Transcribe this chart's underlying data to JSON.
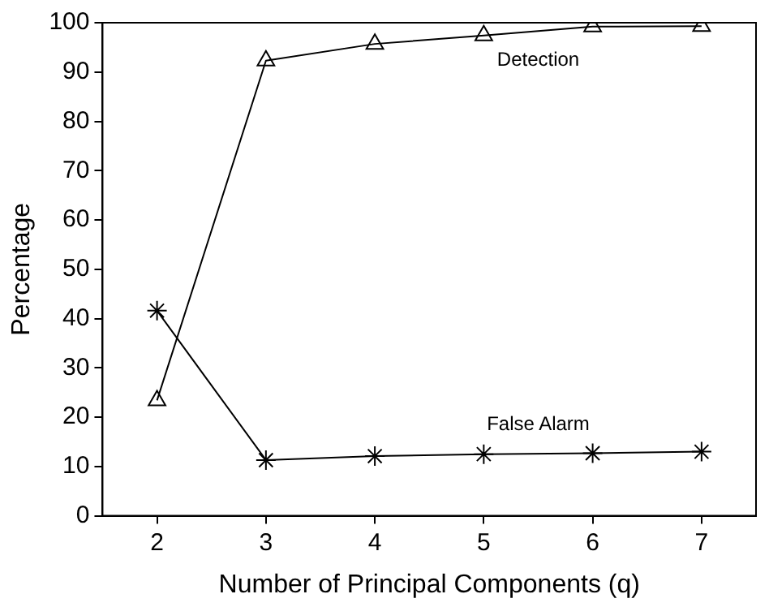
{
  "chart_data": {
    "type": "line",
    "xlabel": "Number of Principal Components (q)",
    "ylabel": "Percentage",
    "x": [
      2,
      3,
      4,
      5,
      6,
      7
    ],
    "series": [
      {
        "name": "Detection",
        "color": "#000000",
        "marker": "triangle",
        "values": [
          23.4,
          92.3,
          95.7,
          97.4,
          99.2,
          99.3
        ]
      },
      {
        "name": "False Alarm",
        "color": "#000000",
        "marker": "cross",
        "values": [
          41.6,
          11.3,
          12.1,
          12.5,
          12.7,
          13.0
        ]
      }
    ],
    "xlim": [
      1.5,
      7.5
    ],
    "xticks": [
      2,
      3,
      4,
      5,
      6,
      7
    ],
    "ylim": [
      0,
      100
    ],
    "yticks": [
      0,
      10,
      20,
      30,
      40,
      50,
      60,
      70,
      80,
      90,
      100
    ],
    "grid": false,
    "legend": false,
    "line_style": "solid"
  }
}
